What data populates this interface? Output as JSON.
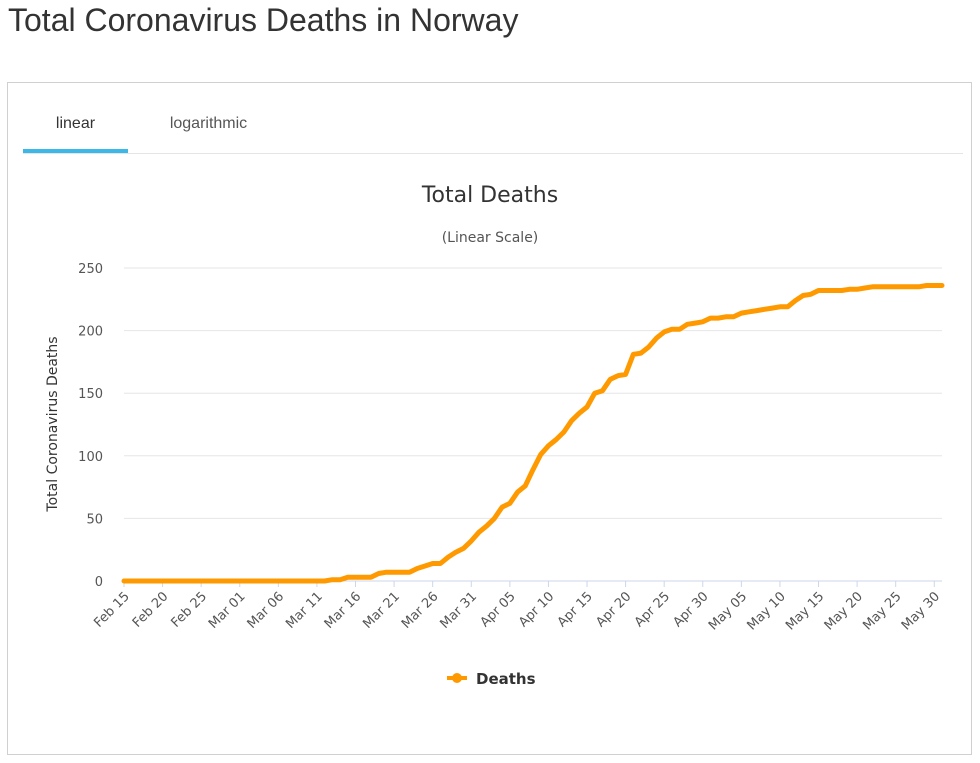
{
  "page": {
    "title": "Total Coronavirus Deaths in Norway"
  },
  "tabs": [
    {
      "label": "linear",
      "active": true
    },
    {
      "label": "logarithmic",
      "active": false
    }
  ],
  "colors": {
    "series": "#ff9900",
    "tab_active": "#3bb8e8",
    "grid": "#e6e6e6"
  },
  "chart_data": {
    "type": "line",
    "title": "Total Deaths",
    "subtitle": "(Linear Scale)",
    "ylabel": "Total Coronavirus Deaths",
    "xlabel": "",
    "ylim": [
      0,
      250
    ],
    "yticks": [
      0,
      50,
      100,
      150,
      200,
      250
    ],
    "xtick_labels": [
      "Feb 15",
      "Feb 20",
      "Feb 25",
      "Mar 01",
      "Mar 06",
      "Mar 11",
      "Mar 16",
      "Mar 21",
      "Mar 26",
      "Mar 31",
      "Apr 05",
      "Apr 10",
      "Apr 15",
      "Apr 20",
      "Apr 25",
      "Apr 30",
      "May 05",
      "May 10",
      "May 15",
      "May 20",
      "May 25",
      "May 30"
    ],
    "legend": "bottom-center",
    "series": [
      {
        "name": "Deaths",
        "values": [
          0,
          0,
          0,
          0,
          0,
          0,
          0,
          0,
          0,
          0,
          0,
          0,
          0,
          0,
          0,
          0,
          0,
          0,
          0,
          0,
          0,
          0,
          0,
          0,
          0,
          0,
          0,
          1,
          1,
          3,
          3,
          3,
          3,
          6,
          7,
          7,
          7,
          7,
          10,
          12,
          14,
          14,
          19,
          23,
          26,
          32,
          39,
          44,
          50,
          59,
          62,
          71,
          76,
          89,
          101,
          108,
          113,
          119,
          128,
          134,
          139,
          150,
          152,
          161,
          164,
          165,
          181,
          182,
          187,
          194,
          199,
          201,
          201,
          205,
          206,
          207,
          210,
          210,
          211,
          211,
          214,
          215,
          216,
          217,
          218,
          219,
          219,
          224,
          228,
          229,
          232,
          232,
          232,
          232,
          233,
          233,
          234,
          235,
          235,
          235,
          235,
          235,
          235,
          235,
          236,
          236,
          236
        ]
      }
    ]
  }
}
